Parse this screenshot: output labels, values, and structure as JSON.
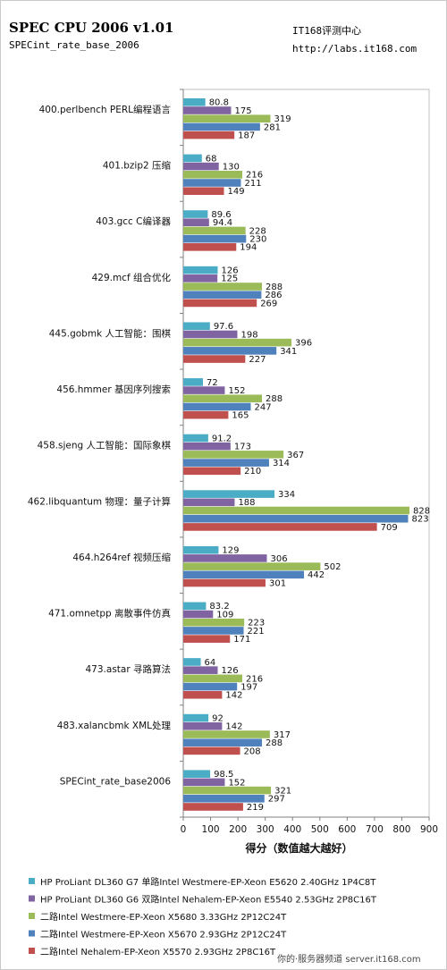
{
  "header": {
    "title": "SPEC CPU 2006 v1.01",
    "subtitle": "SPECint_rate_base_2006",
    "brand": "IT168评测中心",
    "site": "http://labs.it168.com"
  },
  "watermark": "你的·服务器频道  server.it168.com",
  "chart_data": {
    "type": "bar",
    "orientation": "horizontal",
    "title": "SPEC CPU 2006 v1.01",
    "subtitle": "SPECint_rate_base_2006",
    "xlabel": "得分（数值越大越好）",
    "ylabel": "",
    "xlim": [
      0,
      900
    ],
    "xticks": [
      0,
      100,
      200,
      300,
      400,
      500,
      600,
      700,
      800,
      900
    ],
    "grid": false,
    "legend_position": "bottom",
    "categories": [
      "400.perlbench PERL编程语言",
      "401.bzip2 压缩",
      "403.gcc C编译器",
      "429.mcf 组合优化",
      "445.gobmk 人工智能：围棋",
      "456.hmmer 基因序列搜索",
      "458.sjeng 人工智能：国际象棋",
      "462.libquantum 物理：量子计算",
      "464.h264ref 视频压缩",
      "471.omnetpp 离散事件仿真",
      "473.astar 寻路算法",
      "483.xalancbmk XML处理",
      "SPECint_rate_base2006"
    ],
    "series": [
      {
        "name": "HP ProLiant DL360 G7 单路Intel Westmere-EP-Xeon  E5620 2.40GHz 1P4C8T",
        "color": "#4bacc6",
        "values": [
          80.8,
          68,
          89.6,
          126,
          97.6,
          72,
          91.2,
          334,
          129,
          83.2,
          64,
          92,
          98.5
        ]
      },
      {
        "name": "HP ProLiant DL360 G6 双路Intel Nehalem-EP-Xeon  E5540 2.53GHz 2P8C16T",
        "color": "#8064a2",
        "values": [
          175,
          130,
          94.4,
          125,
          198,
          152,
          173,
          188,
          306,
          109,
          126,
          142,
          152
        ]
      },
      {
        "name": "二路Intel Westmere-EP-Xeon  X5680 3.33GHz 2P12C24T",
        "color": "#9bbb59",
        "values": [
          319,
          216,
          228,
          288,
          396,
          288,
          367,
          828,
          502,
          223,
          216,
          317,
          321
        ]
      },
      {
        "name": "二路Intel Westmere-EP-Xeon  X5670 2.93GHz 2P12C24T",
        "color": "#4f81bd",
        "values": [
          281,
          211,
          230,
          286,
          341,
          247,
          314,
          823,
          442,
          221,
          197,
          288,
          297
        ]
      },
      {
        "name": "二路Intel Nehalem-EP-Xeon  X5570 2.93GHz 2P8C16T",
        "color": "#c0504d",
        "values": [
          187,
          149,
          194,
          269,
          227,
          165,
          210,
          709,
          301,
          171,
          142,
          208,
          219
        ]
      }
    ]
  }
}
